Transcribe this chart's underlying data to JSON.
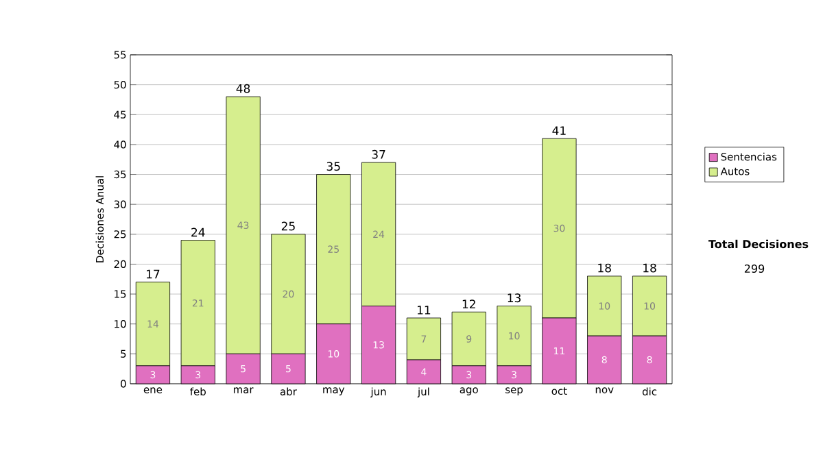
{
  "chart_data": {
    "type": "bar",
    "stacked": true,
    "ylabel": "Decisiones Anual",
    "categories": [
      "ene",
      "feb",
      "mar",
      "abr",
      "may",
      "jun",
      "jul",
      "ago",
      "sep",
      "oct",
      "nov",
      "dic"
    ],
    "series": [
      {
        "name": "Sentencias",
        "color": "#e070c0",
        "values": [
          3,
          3,
          5,
          5,
          10,
          13,
          4,
          3,
          3,
          11,
          8,
          8
        ]
      },
      {
        "name": "Autos",
        "color": "#d6ee8e",
        "values": [
          14,
          21,
          43,
          20,
          25,
          24,
          7,
          9,
          10,
          30,
          10,
          10
        ]
      }
    ],
    "totals": [
      "17",
      "24",
      "48",
      "25",
      "35",
      "37",
      "11",
      "12",
      "13",
      "41",
      "18",
      "18"
    ],
    "data_labels": true,
    "ylim": [
      0,
      55
    ],
    "yticks": [
      0,
      5,
      10,
      15,
      20,
      25,
      30,
      35,
      40,
      45,
      50,
      55
    ],
    "grid": "y",
    "legend": "right",
    "annotations": [
      "Total Decisiones",
      "299"
    ]
  }
}
